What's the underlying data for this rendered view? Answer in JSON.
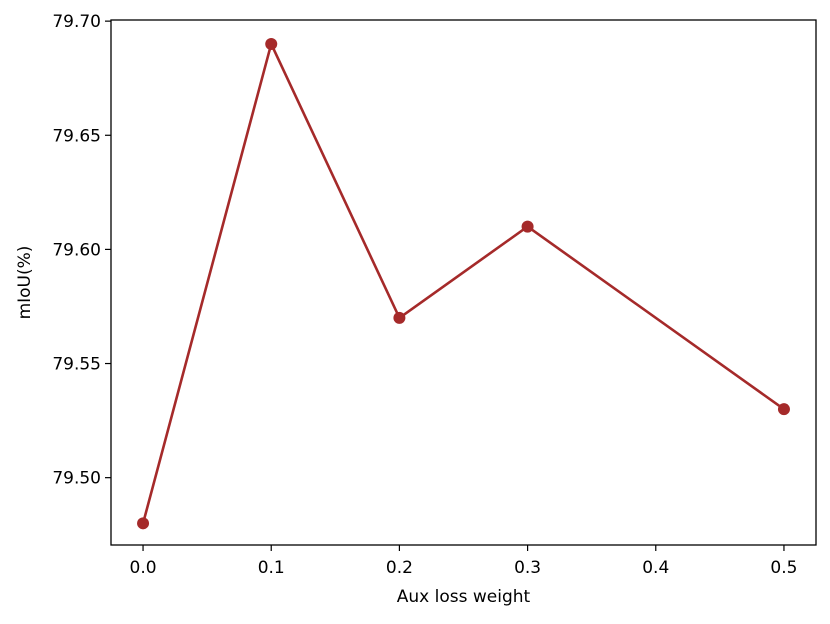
{
  "chart_data": {
    "type": "line",
    "title": "",
    "xlabel": "Aux loss weight",
    "ylabel": "mIoU(%)",
    "x": [
      0.0,
      0.1,
      0.2,
      0.3,
      0.5
    ],
    "series": [
      {
        "values": [
          79.48,
          79.69,
          79.57,
          79.61,
          79.53
        ],
        "color": "#a52a2a",
        "marker": "circle"
      }
    ],
    "xlim": [
      -0.025,
      0.525
    ],
    "ylim": [
      79.4705,
      79.7005
    ],
    "xticks": [
      0.0,
      0.1,
      0.2,
      0.3,
      0.4,
      0.5
    ],
    "xtick_labels": [
      "0.0",
      "0.1",
      "0.2",
      "0.3",
      "0.4",
      "0.5"
    ],
    "yticks": [
      79.5,
      79.55,
      79.6,
      79.65,
      79.7
    ],
    "ytick_labels": [
      "79.50",
      "79.55",
      "79.60",
      "79.65",
      "79.70"
    ],
    "grid": false,
    "legend": "none"
  }
}
